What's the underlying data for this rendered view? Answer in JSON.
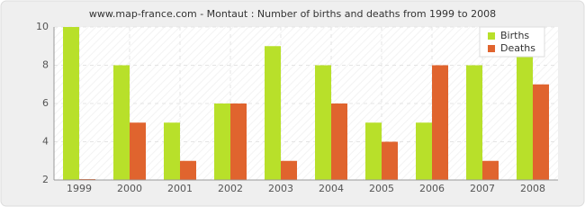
{
  "chart_data": {
    "type": "bar",
    "title": "www.map-france.com - Montaut : Number of births and deaths from 1999 to 2008",
    "categories": [
      "1999",
      "2000",
      "2001",
      "2002",
      "2003",
      "2004",
      "2005",
      "2006",
      "2007",
      "2008"
    ],
    "series": [
      {
        "name": "Births",
        "color": "#b8e02a",
        "values": [
          10,
          8,
          5,
          6,
          9,
          8,
          5,
          5,
          8,
          9
        ]
      },
      {
        "name": "Deaths",
        "color": "#e0642e",
        "values": [
          2,
          5,
          3,
          6,
          3,
          6,
          4,
          8,
          3,
          7
        ]
      }
    ],
    "ylim": [
      2,
      10
    ],
    "yticks": [
      2,
      4,
      6,
      8,
      10
    ],
    "grid": true,
    "legend": "top-right"
  }
}
